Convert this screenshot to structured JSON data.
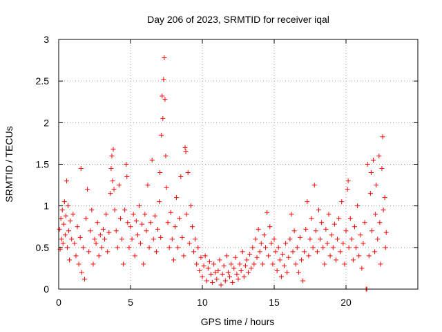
{
  "chart_data": {
    "type": "scatter",
    "title": "Day 206 of 2023, SRMTID for receiver iqal",
    "xlabel": "GPS time / hours",
    "ylabel": "SRMTID / TECUs",
    "xlim": [
      0,
      25
    ],
    "ylim": [
      0,
      3
    ],
    "xticks": [
      0,
      5,
      10,
      15,
      20
    ],
    "xtick_labels": [
      "0",
      "5",
      "10",
      "15",
      "20"
    ],
    "yticks": [
      0,
      0.5,
      1,
      1.5,
      2,
      2.5,
      3
    ],
    "ytick_labels": [
      "0",
      "0.5",
      "1",
      "1.5",
      "2",
      "2.5",
      "3"
    ],
    "grid": true,
    "marker": "+",
    "color": "#ff0000",
    "series": [
      {
        "name": "SRMTID",
        "points": [
          [
            0.05,
            0.72
          ],
          [
            0.1,
            0.48
          ],
          [
            0.15,
            0.85
          ],
          [
            0.2,
            0.6
          ],
          [
            0.25,
            0.95
          ],
          [
            0.3,
            0.55
          ],
          [
            0.35,
            0.78
          ],
          [
            0.4,
            1.05
          ],
          [
            0.45,
            0.65
          ],
          [
            0.5,
            0.88
          ],
          [
            0.55,
            1.3
          ],
          [
            0.6,
            0.5
          ],
          [
            0.65,
            1.0
          ],
          [
            0.7,
            0.7
          ],
          [
            0.75,
            0.35
          ],
          [
            0.8,
            0.82
          ],
          [
            0.9,
            0.6
          ],
          [
            1.0,
            0.9
          ],
          [
            1.1,
            0.55
          ],
          [
            1.2,
            0.4
          ],
          [
            1.3,
            0.75
          ],
          [
            1.4,
            0.3
          ],
          [
            1.5,
            0.62
          ],
          [
            1.55,
            1.45
          ],
          [
            1.6,
            0.2
          ],
          [
            1.7,
            0.5
          ],
          [
            1.8,
            0.12
          ],
          [
            1.9,
            0.85
          ],
          [
            2.0,
            1.2
          ],
          [
            2.1,
            0.45
          ],
          [
            2.2,
            0.7
          ],
          [
            2.3,
            0.95
          ],
          [
            2.4,
            0.3
          ],
          [
            2.5,
            0.6
          ],
          [
            2.6,
            0.55
          ],
          [
            2.7,
            0.8
          ],
          [
            2.8,
            0.4
          ],
          [
            2.9,
            0.65
          ],
          [
            3.0,
            0.5
          ],
          [
            3.1,
            0.72
          ],
          [
            3.2,
            0.6
          ],
          [
            3.3,
            0.9
          ],
          [
            3.4,
            0.45
          ],
          [
            3.5,
            0.68
          ],
          [
            3.6,
            1.15
          ],
          [
            3.65,
            1.45
          ],
          [
            3.7,
            1.6
          ],
          [
            3.75,
            1.3
          ],
          [
            3.8,
            1.68
          ],
          [
            3.85,
            1.2
          ],
          [
            3.9,
            0.95
          ],
          [
            4.0,
            0.7
          ],
          [
            4.1,
            0.5
          ],
          [
            4.2,
            1.25
          ],
          [
            4.3,
            0.85
          ],
          [
            4.4,
            0.6
          ],
          [
            4.5,
            0.3
          ],
          [
            4.6,
            0.95
          ],
          [
            4.7,
            1.5
          ],
          [
            4.75,
            1.35
          ],
          [
            4.8,
            0.8
          ],
          [
            4.9,
            0.5
          ],
          [
            5.0,
            0.75
          ],
          [
            5.1,
            0.6
          ],
          [
            5.2,
            0.9
          ],
          [
            5.3,
            0.4
          ],
          [
            5.4,
            0.82
          ],
          [
            5.5,
            0.65
          ],
          [
            5.6,
            1.0
          ],
          [
            5.7,
            0.55
          ],
          [
            5.8,
            0.78
          ],
          [
            5.9,
            0.3
          ],
          [
            6.0,
            0.9
          ],
          [
            6.1,
            0.7
          ],
          [
            6.2,
            1.25
          ],
          [
            6.3,
            0.5
          ],
          [
            6.4,
            0.8
          ],
          [
            6.5,
            1.55
          ],
          [
            6.6,
            0.6
          ],
          [
            6.7,
            0.88
          ],
          [
            6.8,
            0.45
          ],
          [
            6.9,
            0.72
          ],
          [
            7.0,
            1.05
          ],
          [
            7.05,
            1.4
          ],
          [
            7.1,
            0.62
          ],
          [
            7.15,
            1.85
          ],
          [
            7.2,
            2.32
          ],
          [
            7.25,
            2.05
          ],
          [
            7.3,
            2.52
          ],
          [
            7.35,
            2.78
          ],
          [
            7.4,
            2.28
          ],
          [
            7.45,
            1.6
          ],
          [
            7.5,
            1.22
          ],
          [
            7.6,
            0.8
          ],
          [
            7.7,
            0.5
          ],
          [
            7.8,
            0.92
          ],
          [
            7.9,
            0.6
          ],
          [
            8.0,
            0.35
          ],
          [
            8.1,
            0.75
          ],
          [
            8.2,
            1.1
          ],
          [
            8.3,
            0.5
          ],
          [
            8.4,
            0.85
          ],
          [
            8.5,
            1.35
          ],
          [
            8.6,
            0.62
          ],
          [
            8.7,
            0.4
          ],
          [
            8.8,
            1.7
          ],
          [
            8.85,
            1.65
          ],
          [
            8.9,
            0.9
          ],
          [
            9.0,
            1.4
          ],
          [
            9.1,
            0.55
          ],
          [
            9.2,
            1.0
          ],
          [
            9.3,
            0.75
          ],
          [
            9.4,
            0.45
          ],
          [
            9.5,
            0.6
          ],
          [
            9.6,
            0.3
          ],
          [
            9.7,
            0.5
          ],
          [
            9.8,
            0.22
          ],
          [
            9.9,
            0.38
          ],
          [
            10.0,
            0.15
          ],
          [
            10.1,
            0.28
          ],
          [
            10.2,
            0.4
          ],
          [
            10.3,
            0.1
          ],
          [
            10.4,
            0.25
          ],
          [
            10.5,
            0.33
          ],
          [
            10.6,
            0.18
          ],
          [
            10.7,
            0.08
          ],
          [
            10.8,
            0.3
          ],
          [
            10.9,
            0.2
          ],
          [
            11.0,
            0.12
          ],
          [
            11.1,
            0.22
          ],
          [
            11.2,
            0.35
          ],
          [
            11.3,
            0.05
          ],
          [
            11.4,
            0.18
          ],
          [
            11.5,
            0.28
          ],
          [
            11.6,
            0.1
          ],
          [
            11.7,
            0.4
          ],
          [
            11.8,
            0.2
          ],
          [
            11.9,
            0.15
          ],
          [
            12.0,
            0.3
          ],
          [
            12.1,
            0.08
          ],
          [
            12.2,
            0.25
          ],
          [
            12.3,
            0.38
          ],
          [
            12.4,
            0.18
          ],
          [
            12.5,
            0.12
          ],
          [
            12.6,
            0.3
          ],
          [
            12.7,
            0.22
          ],
          [
            12.8,
            0.45
          ],
          [
            12.9,
            0.15
          ],
          [
            13.0,
            0.28
          ],
          [
            13.1,
            0.35
          ],
          [
            13.2,
            0.2
          ],
          [
            13.3,
            0.42
          ],
          [
            13.4,
            0.25
          ],
          [
            13.5,
            0.5
          ],
          [
            13.6,
            0.3
          ],
          [
            13.7,
            0.6
          ],
          [
            13.8,
            0.38
          ],
          [
            13.9,
            0.72
          ],
          [
            14.0,
            0.45
          ],
          [
            14.1,
            0.55
          ],
          [
            14.2,
            0.3
          ],
          [
            14.3,
            0.65
          ],
          [
            14.4,
            0.5
          ],
          [
            14.5,
            0.92
          ],
          [
            14.6,
            0.4
          ],
          [
            14.7,
            0.75
          ],
          [
            14.8,
            0.55
          ],
          [
            14.9,
            0.3
          ],
          [
            15.0,
            0.6
          ],
          [
            15.1,
            0.45
          ],
          [
            15.2,
            0.22
          ],
          [
            15.3,
            0.5
          ],
          [
            15.4,
            0.35
          ],
          [
            15.5,
            0.15
          ],
          [
            15.6,
            0.42
          ],
          [
            15.7,
            0.28
          ],
          [
            15.8,
            0.55
          ],
          [
            15.9,
            0.2
          ],
          [
            16.0,
            0.38
          ],
          [
            16.1,
            0.6
          ],
          [
            16.2,
            0.9
          ],
          [
            16.3,
            0.45
          ],
          [
            16.4,
            0.7
          ],
          [
            16.5,
            0.3
          ],
          [
            16.6,
            0.5
          ],
          [
            16.7,
            0.2
          ],
          [
            16.8,
            0.62
          ],
          [
            16.9,
            0.35
          ],
          [
            17.0,
            0.1
          ],
          [
            17.1,
            0.45
          ],
          [
            17.2,
            0.72
          ],
          [
            17.3,
            1.05
          ],
          [
            17.4,
            0.4
          ],
          [
            17.5,
            0.6
          ],
          [
            17.6,
            0.85
          ],
          [
            17.7,
            0.5
          ],
          [
            17.8,
            1.25
          ],
          [
            17.9,
            0.7
          ],
          [
            18.0,
            0.45
          ],
          [
            18.1,
            0.95
          ],
          [
            18.2,
            0.6
          ],
          [
            18.3,
            0.8
          ],
          [
            18.4,
            0.5
          ],
          [
            18.5,
            0.3
          ],
          [
            18.6,
            0.72
          ],
          [
            18.7,
            0.55
          ],
          [
            18.8,
            0.9
          ],
          [
            18.9,
            0.4
          ],
          [
            19.0,
            0.65
          ],
          [
            19.1,
            0.5
          ],
          [
            19.2,
            0.78
          ],
          [
            19.3,
            0.35
          ],
          [
            19.4,
            0.6
          ],
          [
            19.5,
            0.85
          ],
          [
            19.6,
            0.45
          ],
          [
            19.7,
            1.05
          ],
          [
            19.8,
            0.55
          ],
          [
            19.9,
            0.3
          ],
          [
            20.0,
            0.7
          ],
          [
            20.1,
            1.2
          ],
          [
            20.15,
            1.3
          ],
          [
            20.2,
            0.5
          ],
          [
            20.3,
            0.85
          ],
          [
            20.4,
            0.6
          ],
          [
            20.5,
            0.35
          ],
          [
            20.6,
            0.75
          ],
          [
            20.7,
            0.5
          ],
          [
            20.8,
            1.0
          ],
          [
            20.9,
            0.4
          ],
          [
            21.0,
            0.65
          ],
          [
            21.1,
            0.25
          ],
          [
            21.2,
            0.55
          ],
          [
            21.3,
            0.8
          ],
          [
            21.4,
            0.0
          ],
          [
            21.45,
            0.0
          ],
          [
            21.5,
            1.5
          ],
          [
            21.6,
            0.4
          ],
          [
            21.7,
            1.15
          ],
          [
            21.75,
            1.4
          ],
          [
            21.8,
            0.7
          ],
          [
            21.9,
            1.55
          ],
          [
            22.0,
            0.45
          ],
          [
            22.05,
            0.9
          ],
          [
            22.1,
            1.25
          ],
          [
            22.2,
            0.6
          ],
          [
            22.3,
            1.6
          ],
          [
            22.35,
            0.8
          ],
          [
            22.4,
            0.3
          ],
          [
            22.5,
            1.45
          ],
          [
            22.55,
            1.83
          ],
          [
            22.6,
            0.95
          ],
          [
            22.7,
            1.1
          ],
          [
            22.75,
            0.5
          ],
          [
            22.8,
            0.68
          ]
        ]
      }
    ]
  }
}
